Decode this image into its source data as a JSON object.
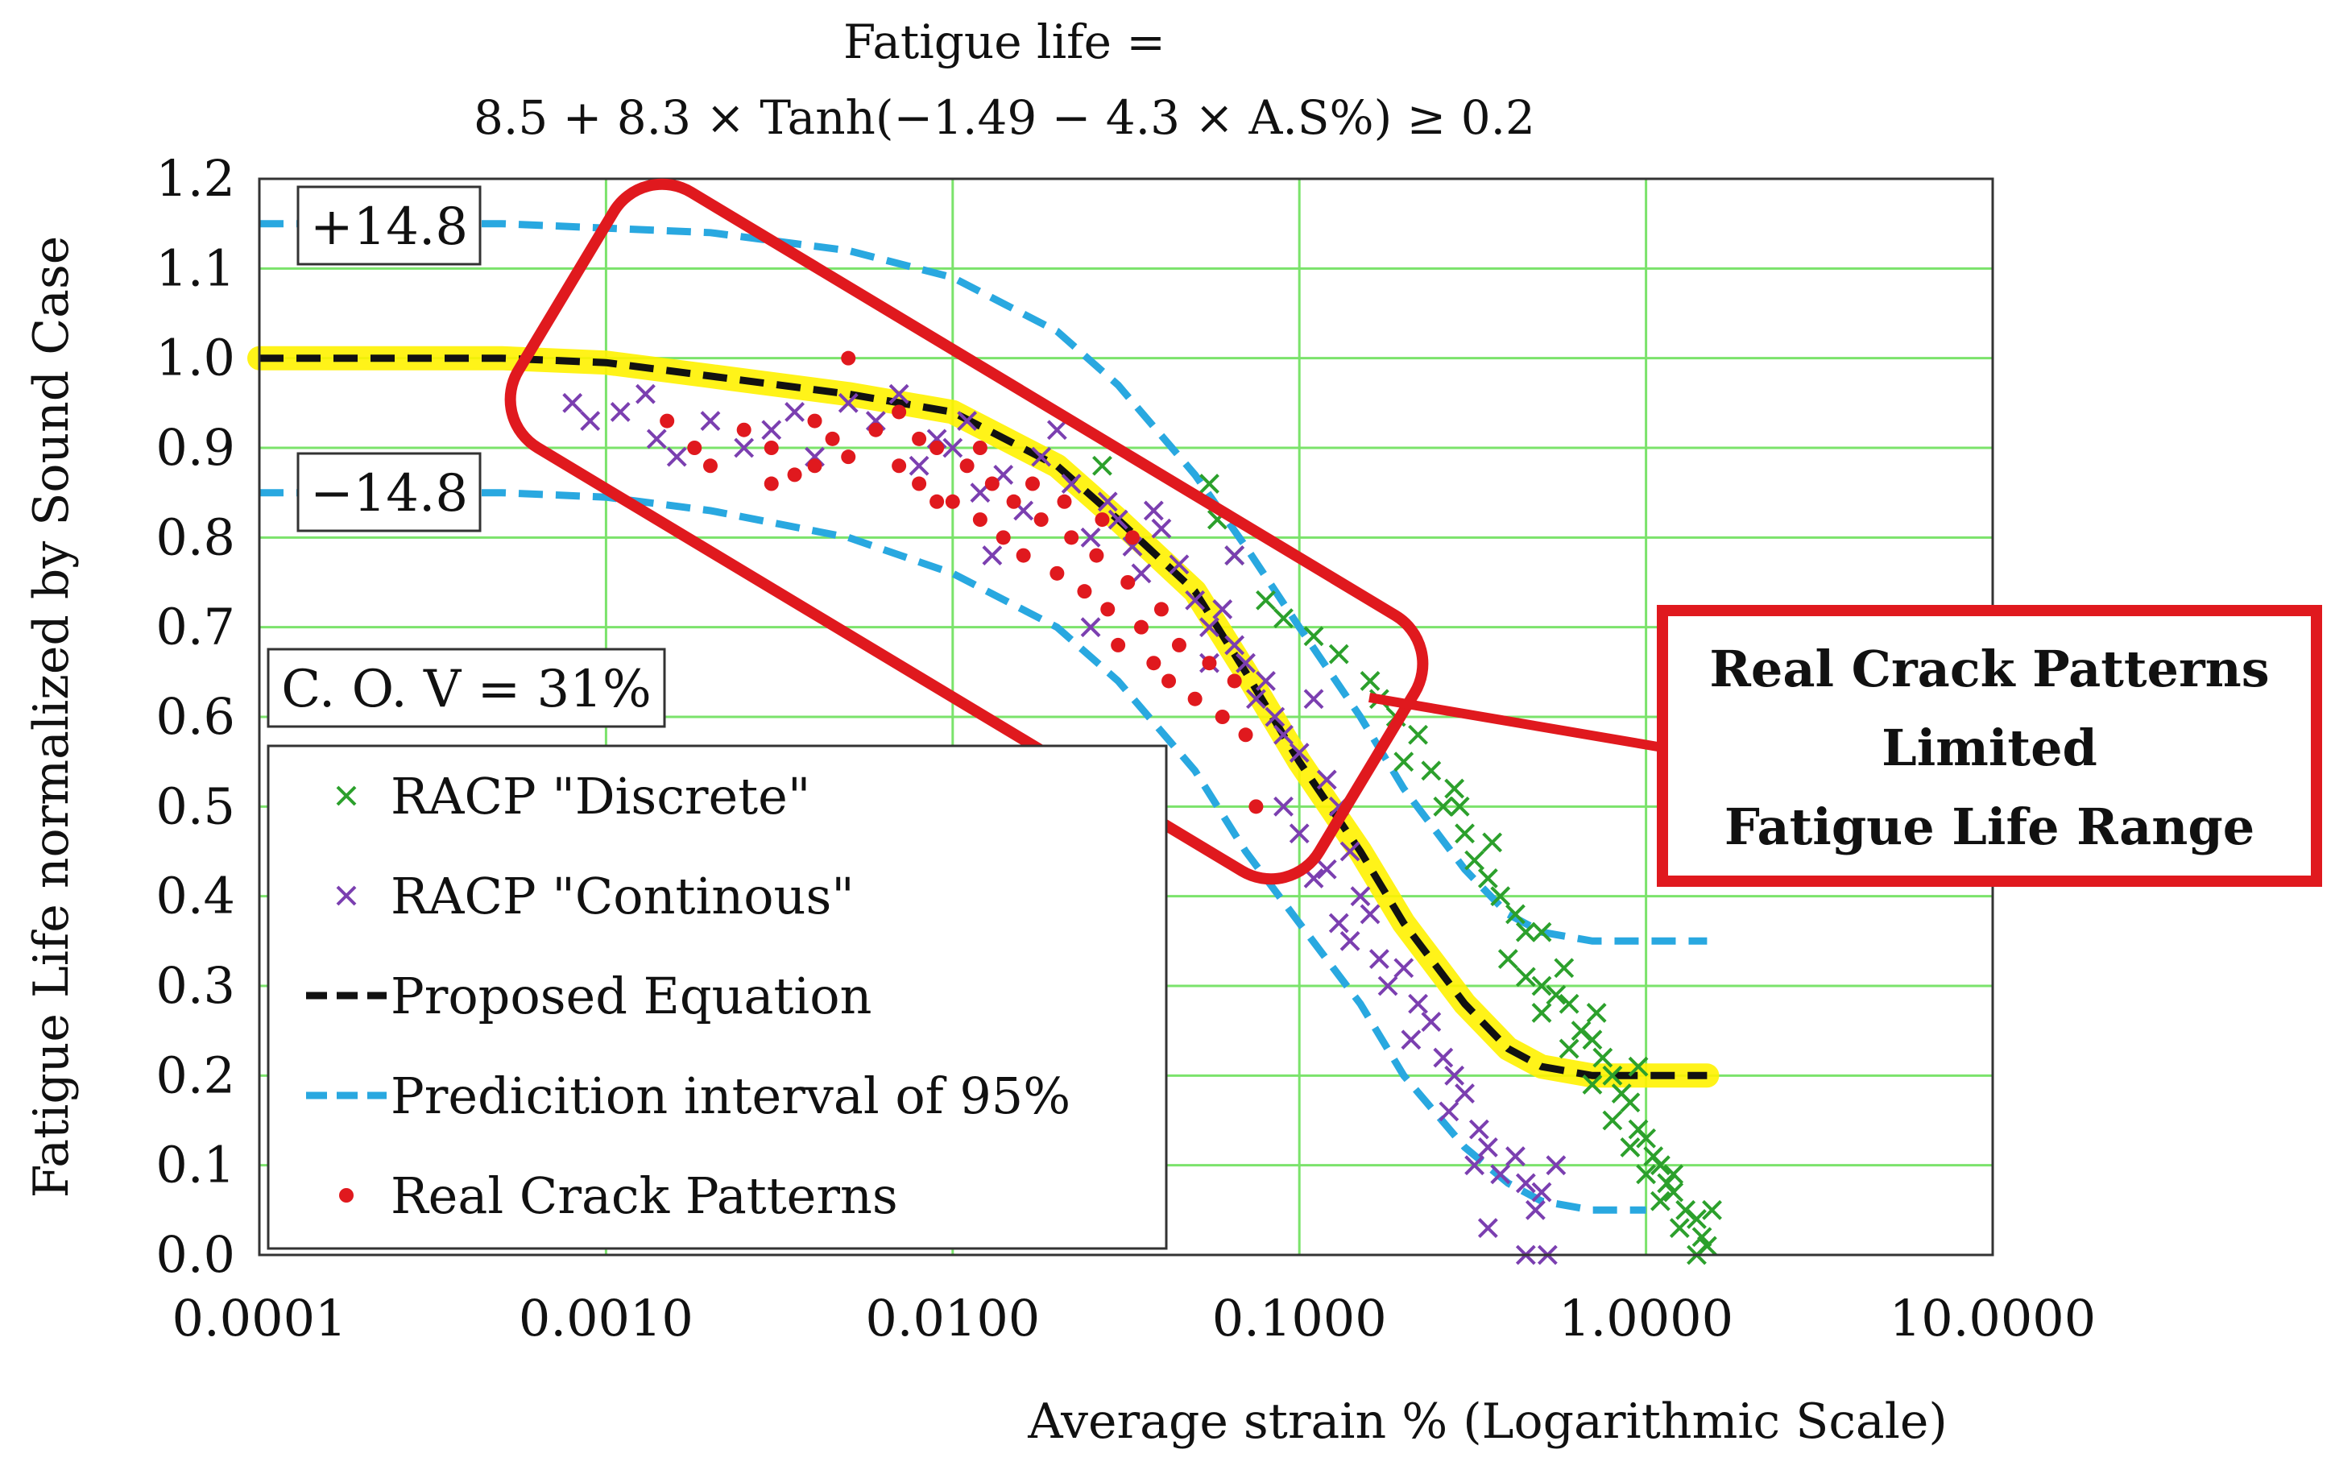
{
  "chart_data": {
    "type": "scatter",
    "title_line1": "Fatigue life =",
    "title_line2": "8.5 + 8.3 × Tanh(−1.49 − 4.3 × A.S%) ≥ 0.2",
    "xlabel": "Average strain % (Logarithmic Scale)",
    "ylabel": "Fatigue Life normalized by Sound Case",
    "x_scale": "log",
    "xlim": [
      0.0001,
      10
    ],
    "ylim": [
      0,
      1.2
    ],
    "x_ticks": [
      0.0001,
      0.001,
      0.01,
      0.1,
      1,
      10
    ],
    "x_tick_labels": [
      "0.0001",
      "0.0010",
      "0.0100",
      "0.1000",
      "1.0000",
      "10.0000"
    ],
    "y_ticks": [
      0.0,
      0.1,
      0.2,
      0.3,
      0.4,
      0.5,
      0.6,
      0.7,
      0.8,
      0.9,
      1.0,
      1.1,
      1.2
    ],
    "y_tick_labels": [
      "0.0",
      "0.1",
      "0.2",
      "0.3",
      "0.4",
      "0.5",
      "0.6",
      "0.7",
      "0.8",
      "0.9",
      "1.0",
      "1.1",
      "1.2"
    ],
    "grid": true,
    "annotations": {
      "upper_bound": "+14.8",
      "lower_bound": "−14.8",
      "cov": "C. O. V = 31%",
      "callout_line1": "Real Crack Patterns",
      "callout_line2": "Limited",
      "callout_line3": "Fatigue Life Range"
    },
    "legend": {
      "placement": "bottom-left",
      "entries": [
        {
          "label": "RACP \"Discrete\"",
          "marker": "x",
          "color": "#2ca02c"
        },
        {
          "label": "RACP \"Continous\"",
          "marker": "x",
          "color": "#7b3fb0"
        },
        {
          "label": "Proposed Equation",
          "marker": "dashed-line",
          "color": "#111111"
        },
        {
          "label": "Predicition interval of 95%",
          "marker": "dashed-line",
          "color": "#29a8e0"
        },
        {
          "label": "Real Crack Patterns",
          "marker": "dot",
          "color": "#e0191e"
        }
      ]
    },
    "series": [
      {
        "name": "RACP \"Discrete\"",
        "color": "#2ca02c",
        "points": [
          [
            0.027,
            0.88
          ],
          [
            0.055,
            0.86
          ],
          [
            0.058,
            0.82
          ],
          [
            0.065,
            0.78
          ],
          [
            0.08,
            0.73
          ],
          [
            0.09,
            0.71
          ],
          [
            0.11,
            0.69
          ],
          [
            0.13,
            0.67
          ],
          [
            0.16,
            0.64
          ],
          [
            0.19,
            0.6
          ],
          [
            0.22,
            0.58
          ],
          [
            0.2,
            0.55
          ],
          [
            0.24,
            0.54
          ],
          [
            0.26,
            0.5
          ],
          [
            0.29,
            0.5
          ],
          [
            0.3,
            0.47
          ],
          [
            0.32,
            0.44
          ],
          [
            0.35,
            0.42
          ],
          [
            0.38,
            0.4
          ],
          [
            0.42,
            0.38
          ],
          [
            0.45,
            0.36
          ],
          [
            0.5,
            0.36
          ],
          [
            0.4,
            0.33
          ],
          [
            0.45,
            0.31
          ],
          [
            0.5,
            0.3
          ],
          [
            0.55,
            0.29
          ],
          [
            0.6,
            0.28
          ],
          [
            0.5,
            0.27
          ],
          [
            0.65,
            0.25
          ],
          [
            0.7,
            0.24
          ],
          [
            0.6,
            0.23
          ],
          [
            0.75,
            0.22
          ],
          [
            0.8,
            0.2
          ],
          [
            0.7,
            0.19
          ],
          [
            0.85,
            0.18
          ],
          [
            0.9,
            0.17
          ],
          [
            0.8,
            0.15
          ],
          [
            0.95,
            0.14
          ],
          [
            1.0,
            0.13
          ],
          [
            0.9,
            0.12
          ],
          [
            1.05,
            0.11
          ],
          [
            1.1,
            0.1
          ],
          [
            1.0,
            0.09
          ],
          [
            1.15,
            0.08
          ],
          [
            1.2,
            0.07
          ],
          [
            1.1,
            0.06
          ],
          [
            1.3,
            0.05
          ],
          [
            1.4,
            0.04
          ],
          [
            1.25,
            0.03
          ],
          [
            1.45,
            0.02
          ],
          [
            1.5,
            0.01
          ],
          [
            1.4,
            0.0
          ],
          [
            1.55,
            0.05
          ],
          [
            1.2,
            0.09
          ],
          [
            0.95,
            0.21
          ],
          [
            0.72,
            0.27
          ],
          [
            0.58,
            0.32
          ],
          [
            0.36,
            0.46
          ],
          [
            0.28,
            0.52
          ],
          [
            0.17,
            0.62
          ]
        ]
      },
      {
        "name": "RACP \"Continous\"",
        "color": "#7b3fb0",
        "points": [
          [
            0.0008,
            0.95
          ],
          [
            0.0009,
            0.93
          ],
          [
            0.0011,
            0.94
          ],
          [
            0.0013,
            0.96
          ],
          [
            0.0014,
            0.91
          ],
          [
            0.0016,
            0.89
          ],
          [
            0.002,
            0.93
          ],
          [
            0.0025,
            0.9
          ],
          [
            0.003,
            0.92
          ],
          [
            0.0035,
            0.94
          ],
          [
            0.004,
            0.89
          ],
          [
            0.005,
            0.95
          ],
          [
            0.006,
            0.93
          ],
          [
            0.007,
            0.96
          ],
          [
            0.008,
            0.88
          ],
          [
            0.009,
            0.91
          ],
          [
            0.01,
            0.9
          ],
          [
            0.011,
            0.93
          ],
          [
            0.012,
            0.85
          ],
          [
            0.013,
            0.78
          ],
          [
            0.014,
            0.87
          ],
          [
            0.016,
            0.83
          ],
          [
            0.018,
            0.89
          ],
          [
            0.02,
            0.92
          ],
          [
            0.022,
            0.86
          ],
          [
            0.025,
            0.8
          ],
          [
            0.025,
            0.7
          ],
          [
            0.028,
            0.84
          ],
          [
            0.03,
            0.82
          ],
          [
            0.033,
            0.79
          ],
          [
            0.035,
            0.76
          ],
          [
            0.038,
            0.83
          ],
          [
            0.04,
            0.81
          ],
          [
            0.045,
            0.77
          ],
          [
            0.05,
            0.73
          ],
          [
            0.055,
            0.7
          ],
          [
            0.06,
            0.72
          ],
          [
            0.065,
            0.68
          ],
          [
            0.07,
            0.66
          ],
          [
            0.075,
            0.62
          ],
          [
            0.08,
            0.64
          ],
          [
            0.085,
            0.6
          ],
          [
            0.09,
            0.58
          ],
          [
            0.1,
            0.56
          ],
          [
            0.11,
            0.62
          ],
          [
            0.12,
            0.53
          ],
          [
            0.13,
            0.5
          ],
          [
            0.1,
            0.47
          ],
          [
            0.12,
            0.43
          ],
          [
            0.14,
            0.45
          ],
          [
            0.15,
            0.4
          ],
          [
            0.16,
            0.38
          ],
          [
            0.14,
            0.35
          ],
          [
            0.17,
            0.33
          ],
          [
            0.18,
            0.3
          ],
          [
            0.2,
            0.32
          ],
          [
            0.22,
            0.28
          ],
          [
            0.24,
            0.26
          ],
          [
            0.21,
            0.24
          ],
          [
            0.26,
            0.22
          ],
          [
            0.28,
            0.2
          ],
          [
            0.3,
            0.18
          ],
          [
            0.27,
            0.16
          ],
          [
            0.33,
            0.14
          ],
          [
            0.35,
            0.12
          ],
          [
            0.32,
            0.1
          ],
          [
            0.38,
            0.09
          ],
          [
            0.42,
            0.11
          ],
          [
            0.45,
            0.08
          ],
          [
            0.5,
            0.07
          ],
          [
            0.55,
            0.1
          ],
          [
            0.48,
            0.05
          ],
          [
            0.35,
            0.03
          ],
          [
            0.45,
            0.0
          ],
          [
            0.52,
            0.0
          ],
          [
            0.065,
            0.78
          ],
          [
            0.055,
            0.66
          ],
          [
            0.09,
            0.5
          ],
          [
            0.11,
            0.42
          ],
          [
            0.13,
            0.37
          ]
        ]
      },
      {
        "name": "Real Crack Patterns",
        "color": "#e0191e",
        "points": [
          [
            0.0015,
            0.93
          ],
          [
            0.0018,
            0.9
          ],
          [
            0.002,
            0.88
          ],
          [
            0.0025,
            0.92
          ],
          [
            0.003,
            0.9
          ],
          [
            0.0035,
            0.87
          ],
          [
            0.004,
            0.93
          ],
          [
            0.0045,
            0.91
          ],
          [
            0.005,
            1.0
          ],
          [
            0.005,
            0.89
          ],
          [
            0.006,
            0.92
          ],
          [
            0.007,
            0.88
          ],
          [
            0.008,
            0.86
          ],
          [
            0.009,
            0.9
          ],
          [
            0.01,
            0.84
          ],
          [
            0.011,
            0.88
          ],
          [
            0.012,
            0.82
          ],
          [
            0.013,
            0.86
          ],
          [
            0.014,
            0.8
          ],
          [
            0.015,
            0.84
          ],
          [
            0.016,
            0.78
          ],
          [
            0.018,
            0.82
          ],
          [
            0.02,
            0.76
          ],
          [
            0.022,
            0.8
          ],
          [
            0.024,
            0.74
          ],
          [
            0.026,
            0.78
          ],
          [
            0.028,
            0.72
          ],
          [
            0.03,
            0.68
          ],
          [
            0.032,
            0.75
          ],
          [
            0.035,
            0.7
          ],
          [
            0.038,
            0.66
          ],
          [
            0.04,
            0.72
          ],
          [
            0.042,
            0.64
          ],
          [
            0.045,
            0.68
          ],
          [
            0.05,
            0.62
          ],
          [
            0.055,
            0.66
          ],
          [
            0.06,
            0.6
          ],
          [
            0.065,
            0.64
          ],
          [
            0.07,
            0.58
          ],
          [
            0.075,
            0.5
          ],
          [
            0.008,
            0.91
          ],
          [
            0.009,
            0.84
          ],
          [
            0.012,
            0.9
          ],
          [
            0.017,
            0.86
          ],
          [
            0.021,
            0.84
          ],
          [
            0.027,
            0.82
          ],
          [
            0.033,
            0.8
          ],
          [
            0.007,
            0.94
          ],
          [
            0.004,
            0.88
          ],
          [
            0.003,
            0.86
          ]
        ]
      }
    ],
    "lines": [
      {
        "name": "Proposed Equation",
        "color": "#111111",
        "highlight": "#fff200",
        "points": [
          [
            0.0001,
            1.0
          ],
          [
            0.0005,
            1.0
          ],
          [
            0.001,
            0.995
          ],
          [
            0.002,
            0.98
          ],
          [
            0.005,
            0.96
          ],
          [
            0.01,
            0.94
          ],
          [
            0.02,
            0.88
          ],
          [
            0.03,
            0.82
          ],
          [
            0.05,
            0.74
          ],
          [
            0.07,
            0.65
          ],
          [
            0.1,
            0.55
          ],
          [
            0.15,
            0.45
          ],
          [
            0.2,
            0.37
          ],
          [
            0.3,
            0.28
          ],
          [
            0.4,
            0.23
          ],
          [
            0.5,
            0.21
          ],
          [
            0.7,
            0.2
          ],
          [
            1.0,
            0.2
          ],
          [
            1.5,
            0.2
          ]
        ]
      },
      {
        "name": "Predicition interval of 95% (upper)",
        "color": "#29a8e0",
        "points": [
          [
            0.0001,
            1.15
          ],
          [
            0.0005,
            1.15
          ],
          [
            0.001,
            1.145
          ],
          [
            0.002,
            1.14
          ],
          [
            0.005,
            1.12
          ],
          [
            0.01,
            1.09
          ],
          [
            0.02,
            1.03
          ],
          [
            0.03,
            0.97
          ],
          [
            0.05,
            0.87
          ],
          [
            0.07,
            0.79
          ],
          [
            0.1,
            0.7
          ],
          [
            0.15,
            0.6
          ],
          [
            0.2,
            0.52
          ],
          [
            0.3,
            0.43
          ],
          [
            0.4,
            0.38
          ],
          [
            0.5,
            0.36
          ],
          [
            0.7,
            0.35
          ],
          [
            1.0,
            0.35
          ],
          [
            1.5,
            0.35
          ]
        ]
      },
      {
        "name": "Predicition interval of 95% (lower)",
        "color": "#29a8e0",
        "points": [
          [
            0.0001,
            0.85
          ],
          [
            0.0005,
            0.85
          ],
          [
            0.001,
            0.845
          ],
          [
            0.002,
            0.83
          ],
          [
            0.005,
            0.8
          ],
          [
            0.01,
            0.76
          ],
          [
            0.02,
            0.7
          ],
          [
            0.03,
            0.64
          ],
          [
            0.05,
            0.54
          ],
          [
            0.07,
            0.45
          ],
          [
            0.1,
            0.37
          ],
          [
            0.15,
            0.28
          ],
          [
            0.2,
            0.2
          ],
          [
            0.3,
            0.12
          ],
          [
            0.4,
            0.08
          ],
          [
            0.5,
            0.06
          ],
          [
            0.7,
            0.05
          ],
          [
            1.0,
            0.05
          ]
        ]
      }
    ]
  }
}
